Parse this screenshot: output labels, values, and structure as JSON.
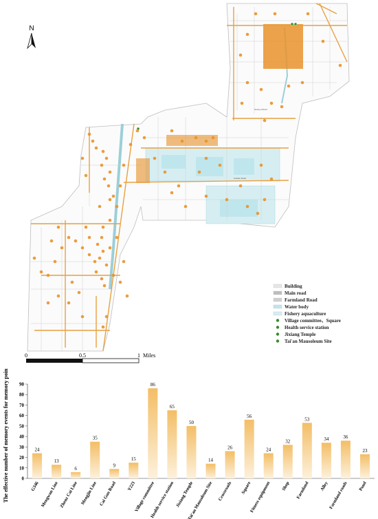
{
  "map": {
    "north_label": "N",
    "road_labels": [
      "Caixiao Road",
      "Guanyu Road"
    ],
    "legend": [
      {
        "label": "Building",
        "swatch": "rect",
        "color": "#e6e6e6"
      },
      {
        "label": "Main road",
        "swatch": "rect",
        "color": "#bdbdbd"
      },
      {
        "label": "Farmland Road",
        "swatch": "rect",
        "color": "#cfcfcf"
      },
      {
        "label": "Water body",
        "swatch": "rect",
        "color": "#bfe6ec"
      },
      {
        "label": "Fishery aquaculture",
        "swatch": "rect",
        "color": "#d6eef2"
      },
      {
        "label": "Village committee、Square",
        "swatch": "dot",
        "color": "#3a8a2a"
      },
      {
        "label": "Health service station",
        "swatch": "dot",
        "color": "#3a8a2a"
      },
      {
        "label": "Jixiang Temple",
        "swatch": "dot",
        "color": "#3a8a2a"
      },
      {
        "label": "Tai'an Mausoleum Site",
        "swatch": "dot",
        "color": "#3a8a2a"
      }
    ],
    "scale_bar": {
      "ticks": [
        "0",
        "0.5",
        "1"
      ],
      "unit": "Miles"
    },
    "colors": {
      "road": "#e8a040",
      "point": "#e8922a",
      "water": "#bfe6ec",
      "building": "#e6e6e6"
    }
  },
  "chart_data": {
    "type": "bar",
    "ylabel": "The effective number of memory events for memory points",
    "ylim": [
      0,
      90
    ],
    "yticks": [
      0,
      10,
      20,
      30,
      40,
      50,
      60,
      70,
      80,
      90
    ],
    "categories": [
      "G346",
      "Mengwan Line",
      "Zhenz Cai Line",
      "Mengjin Line",
      "Cai Guo Road",
      "Y223",
      "Village committee",
      "Health service station",
      "Jixiang Temple",
      "Tai'an Mausoleum Site",
      "Crossroads",
      "Square",
      "Fitness equipment",
      "Shop",
      "Farmland",
      "Alley",
      "Farmland roads",
      "Pond"
    ],
    "values": [
      24,
      13,
      6,
      35,
      9,
      15,
      86,
      65,
      50,
      14,
      26,
      56,
      24,
      32,
      53,
      34,
      36,
      23
    ],
    "bar_color_top": "#f3be66",
    "bar_color_bottom": "#fdf1dc"
  }
}
